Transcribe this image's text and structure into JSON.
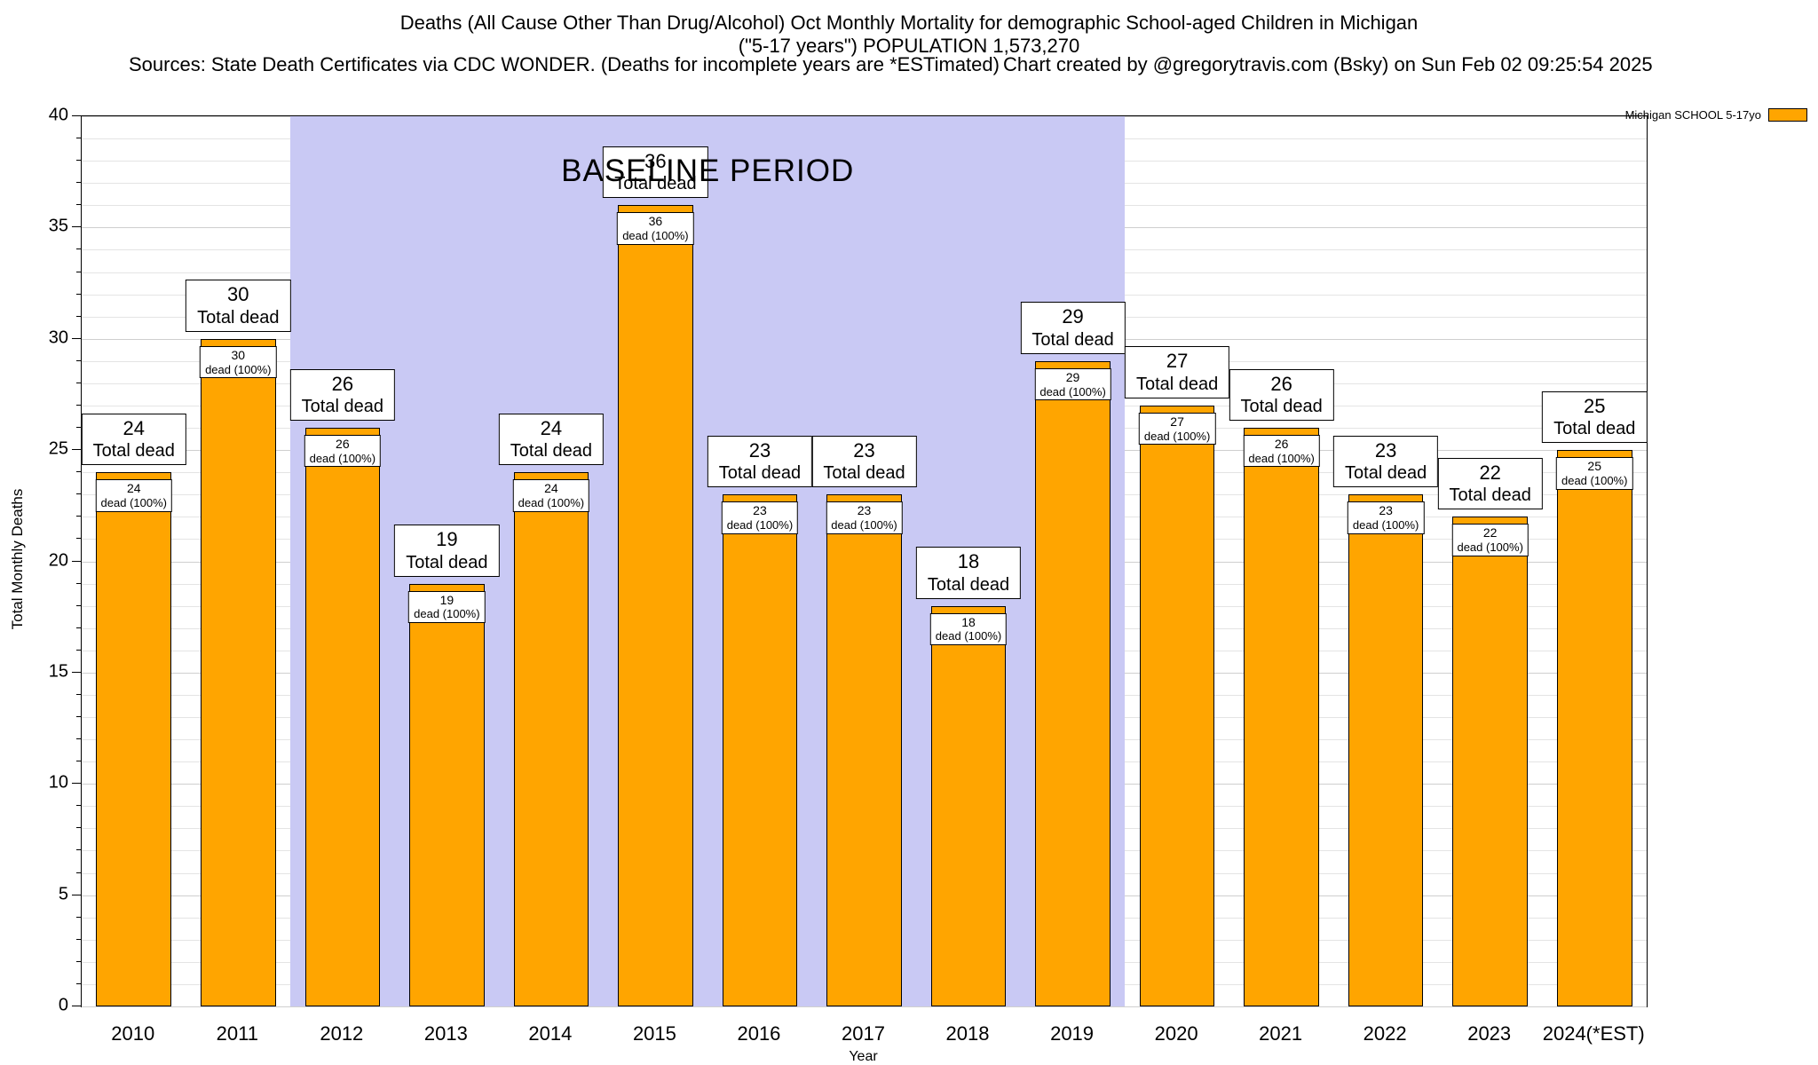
{
  "header": {
    "title_line1": "Deaths (All Cause Other Than Drug/Alcohol) Oct Monthly Mortality for demographic School-aged Children in Michigan",
    "title_line2": "(\"5-17 years\") POPULATION 1,573,270",
    "sources": "Sources: State Death Certificates via CDC WONDER. (Deaths for incomplete years are *ESTimated)",
    "credit": "Chart created by @gregorytravis.com (Bsky) on Sun Feb 02 09:25:54 2025"
  },
  "legend": {
    "label": "Michigan SCHOOL 5-17yo",
    "swatch_color": "#FFA500"
  },
  "chart_data": {
    "type": "bar",
    "title": "Deaths (All Cause Other Than Drug/Alcohol) Oct Monthly Mortality for demographic School-aged Children in Michigan (\"5-17 years\") POPULATION 1,573,270",
    "xlabel": "Year",
    "ylabel": "Total Monthly Deaths",
    "ylim": [
      0,
      40
    ],
    "y_major_ticks": [
      0,
      5,
      10,
      15,
      20,
      25,
      30,
      35,
      40
    ],
    "y_minor_step": 1,
    "grid": true,
    "legend_position": "top-right",
    "categories": [
      "2010",
      "2011",
      "2012",
      "2013",
      "2014",
      "2015",
      "2016",
      "2017",
      "2018",
      "2019",
      "2020",
      "2021",
      "2022",
      "2023",
      "2024(*EST)"
    ],
    "values": [
      24,
      30,
      26,
      19,
      24,
      36,
      23,
      23,
      18,
      29,
      27,
      26,
      23,
      22,
      25
    ],
    "bar_color": "#FFA500",
    "bar_top_label_suffix": "dead (100%)",
    "bar_annotation_suffix": "Total dead",
    "baseline": {
      "label": "BASELINE PERIOD",
      "start_category": "2012",
      "end_category": "2019",
      "color": "#C9C9F4"
    }
  }
}
